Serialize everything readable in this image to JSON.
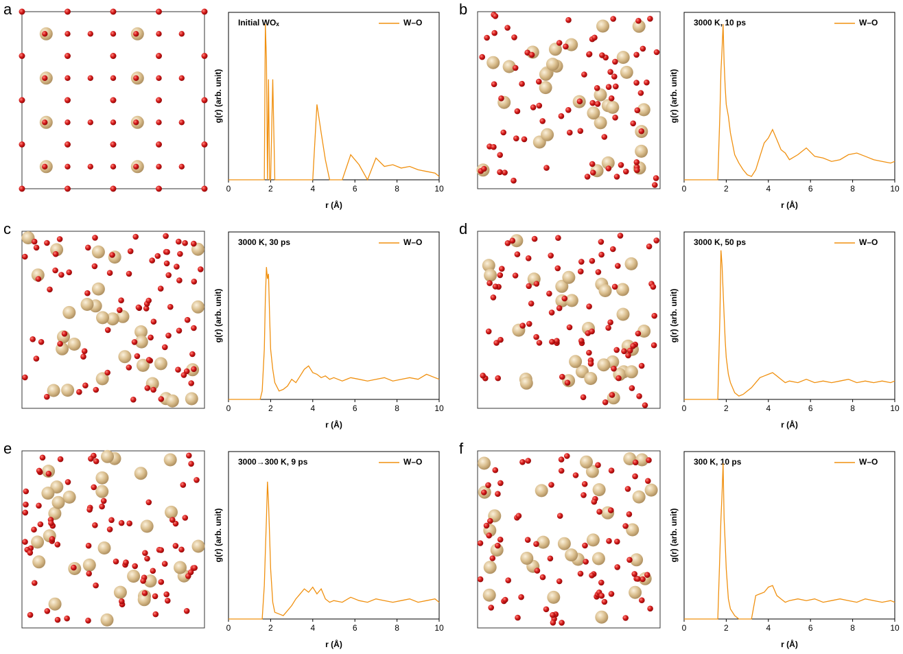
{
  "chart_data": [
    {
      "type": "line",
      "label": "a",
      "title": "Initial WOₓ",
      "xlabel": "r (Å)",
      "ylabel": "g(r) (arb. unit)",
      "legend": "upper right",
      "x": [
        0,
        1.5,
        1.6,
        1.7,
        1.75,
        1.8,
        1.85,
        1.9,
        1.95,
        2.0,
        2.1,
        2.2,
        2.4,
        2.6,
        2.8,
        3.0,
        3.2,
        3.4,
        3.6,
        3.8,
        4.0,
        4.2,
        4.4,
        4.6,
        4.8,
        5.0,
        5.4,
        5.8,
        6.2,
        6.6,
        7.0,
        7.4,
        7.8,
        8.2,
        8.6,
        9.0,
        9.4,
        9.8,
        10
      ],
      "series": [
        {
          "name": "W–O",
          "color": "#f0900f",
          "values": [
            0,
            0,
            0,
            0,
            9.3,
            7.2,
            0,
            6.0,
            0,
            0,
            6.0,
            0,
            0,
            0,
            0,
            0,
            0,
            0,
            0,
            0,
            0,
            4.5,
            2.8,
            1.2,
            0,
            0,
            0,
            1.5,
            0.9,
            0,
            1.3,
            0.8,
            0.9,
            0.7,
            0.8,
            0.6,
            0.5,
            0.4,
            0.2
          ]
        }
      ],
      "xlim": [
        0,
        10
      ],
      "ylim": [
        0,
        10
      ],
      "xticks": [
        0,
        2,
        4,
        6,
        8,
        10
      ]
    },
    {
      "type": "line",
      "label": "b",
      "title": "3000 K, 10 ps",
      "xlabel": "r (Å)",
      "ylabel": "g(r) (arb. unit)",
      "legend": "upper right",
      "x": [
        0,
        1.5,
        1.6,
        1.7,
        1.75,
        1.8,
        1.85,
        1.9,
        1.95,
        2.0,
        2.1,
        2.2,
        2.4,
        2.6,
        2.8,
        3.0,
        3.2,
        3.4,
        3.6,
        3.8,
        4.0,
        4.2,
        4.4,
        4.6,
        4.8,
        5.0,
        5.4,
        5.8,
        6.2,
        6.6,
        7.0,
        7.4,
        7.8,
        8.2,
        8.6,
        9.0,
        9.4,
        9.8,
        10
      ],
      "series": [
        {
          "name": "W–O",
          "color": "#f0900f",
          "values": [
            0,
            0,
            0,
            4.0,
            6.5,
            7.8,
            9.3,
            7.0,
            5.5,
            4.5,
            3.8,
            2.8,
            1.5,
            1.0,
            0.6,
            0.3,
            0.2,
            0.6,
            1.4,
            2.2,
            2.5,
            3.0,
            2.4,
            1.8,
            1.6,
            1.2,
            1.5,
            1.9,
            1.4,
            1.3,
            1.1,
            1.2,
            1.5,
            1.6,
            1.4,
            1.2,
            1.1,
            1.0,
            1.1
          ]
        }
      ],
      "xlim": [
        0,
        10
      ],
      "ylim": [
        0,
        10
      ],
      "xticks": [
        0,
        2,
        4,
        6,
        8,
        10
      ]
    },
    {
      "type": "line",
      "label": "c",
      "title": "3000 K, 30 ps",
      "xlabel": "r (Å)",
      "ylabel": "g(r) (arb. unit)",
      "legend": "upper right",
      "x": [
        0,
        1.5,
        1.6,
        1.7,
        1.75,
        1.8,
        1.85,
        1.9,
        1.95,
        2.0,
        2.1,
        2.2,
        2.4,
        2.6,
        2.8,
        3.0,
        3.2,
        3.4,
        3.6,
        3.8,
        4.0,
        4.2,
        4.4,
        4.6,
        4.8,
        5.0,
        5.4,
        5.8,
        6.2,
        6.6,
        7.0,
        7.4,
        7.8,
        8.2,
        8.6,
        9.0,
        9.4,
        9.8,
        10
      ],
      "series": [
        {
          "name": "W–O",
          "color": "#f0900f",
          "values": [
            0,
            0,
            0.5,
            3.0,
            6.0,
            7.9,
            7.2,
            7.5,
            5.0,
            3.0,
            1.8,
            1.0,
            0.5,
            0.6,
            0.8,
            1.2,
            1.0,
            1.4,
            1.8,
            2.0,
            1.6,
            1.5,
            1.3,
            1.4,
            1.2,
            1.3,
            1.1,
            1.3,
            1.2,
            1.1,
            1.2,
            1.3,
            1.1,
            1.2,
            1.3,
            1.2,
            1.5,
            1.3,
            1.2
          ]
        }
      ],
      "xlim": [
        0,
        10
      ],
      "ylim": [
        0,
        10
      ],
      "xticks": [
        0,
        2,
        4,
        6,
        8,
        10
      ]
    },
    {
      "type": "line",
      "label": "d",
      "title": "3000 K, 50 ps",
      "xlabel": "r (Å)",
      "ylabel": "g(r) (arb. unit)",
      "legend": "upper right",
      "x": [
        0,
        1.5,
        1.6,
        1.7,
        1.75,
        1.8,
        1.85,
        1.9,
        1.95,
        2.0,
        2.1,
        2.2,
        2.4,
        2.6,
        2.8,
        3.0,
        3.2,
        3.4,
        3.6,
        3.8,
        4.0,
        4.2,
        4.4,
        4.6,
        4.8,
        5.0,
        5.4,
        5.8,
        6.2,
        6.6,
        7.0,
        7.4,
        7.8,
        8.2,
        8.6,
        9.0,
        9.4,
        9.8,
        10
      ],
      "series": [
        {
          "name": "W–O",
          "color": "#f0900f",
          "values": [
            0,
            0,
            0,
            5.0,
            8.9,
            8.0,
            6.5,
            5.0,
            3.5,
            2.5,
            1.5,
            1.0,
            0.4,
            0.2,
            0.3,
            0.5,
            0.7,
            1.0,
            1.3,
            1.4,
            1.5,
            1.6,
            1.4,
            1.2,
            1.0,
            1.1,
            1.0,
            1.2,
            1.0,
            1.1,
            1.0,
            1.1,
            1.2,
            1.0,
            1.1,
            1.0,
            1.1,
            1.0,
            1.1
          ]
        }
      ],
      "xlim": [
        0,
        10
      ],
      "ylim": [
        0,
        10
      ],
      "xticks": [
        0,
        2,
        4,
        6,
        8,
        10
      ]
    },
    {
      "type": "line",
      "label": "e",
      "title": "3000→300 K, 9 ps",
      "xlabel": "r (Å)",
      "ylabel": "g(r) (arb. unit)",
      "legend": "upper right",
      "x": [
        0,
        1.5,
        1.6,
        1.7,
        1.75,
        1.8,
        1.85,
        1.9,
        1.95,
        2.0,
        2.1,
        2.2,
        2.4,
        2.6,
        2.8,
        3.0,
        3.2,
        3.4,
        3.6,
        3.8,
        4.0,
        4.2,
        4.4,
        4.6,
        4.8,
        5.0,
        5.4,
        5.8,
        6.2,
        6.6,
        7.0,
        7.4,
        7.8,
        8.2,
        8.6,
        9.0,
        9.4,
        9.8,
        10
      ],
      "series": [
        {
          "name": "W–O",
          "color": "#f0900f",
          "values": [
            0,
            0,
            0,
            2.0,
            4.0,
            6.0,
            8.2,
            7.0,
            5.0,
            3.0,
            1.0,
            0.4,
            0.3,
            0.2,
            0.5,
            0.8,
            1.2,
            1.5,
            1.8,
            1.6,
            1.9,
            1.5,
            1.8,
            1.2,
            1.0,
            1.1,
            1.0,
            1.3,
            1.1,
            1.0,
            1.2,
            1.1,
            1.0,
            1.1,
            1.2,
            1.0,
            1.1,
            1.2,
            1.0
          ]
        }
      ],
      "xlim": [
        0,
        10
      ],
      "ylim": [
        0,
        10
      ],
      "xticks": [
        0,
        2,
        4,
        6,
        8,
        10
      ]
    },
    {
      "type": "line",
      "label": "f",
      "title": "300 K, 10 ps",
      "xlabel": "r (Å)",
      "ylabel": "g(r) (arb. unit)",
      "legend": "upper right",
      "x": [
        0,
        1.5,
        1.6,
        1.7,
        1.75,
        1.8,
        1.85,
        1.9,
        1.95,
        2.0,
        2.1,
        2.2,
        2.4,
        2.6,
        2.8,
        3.0,
        3.2,
        3.4,
        3.6,
        3.8,
        4.0,
        4.2,
        4.4,
        4.6,
        4.8,
        5.0,
        5.4,
        5.8,
        6.2,
        6.6,
        7.0,
        7.4,
        7.8,
        8.2,
        8.6,
        9.0,
        9.4,
        9.8,
        10
      ],
      "series": [
        {
          "name": "W–O",
          "color": "#f0900f",
          "values": [
            0,
            0,
            0,
            4.0,
            6.0,
            7.5,
            9.3,
            6.0,
            4.5,
            3.0,
            1.2,
            0.6,
            0.2,
            0,
            0,
            0,
            0,
            1.4,
            1.5,
            1.6,
            1.9,
            2.0,
            1.4,
            1.2,
            1.0,
            1.1,
            1.2,
            1.1,
            1.2,
            1.0,
            1.1,
            1.2,
            1.1,
            1.0,
            1.2,
            1.1,
            1.0,
            1.1,
            1.0
          ]
        }
      ],
      "xlim": [
        0,
        10
      ],
      "ylim": [
        0,
        10
      ],
      "xticks": [
        0,
        2,
        4,
        6,
        8,
        10
      ]
    }
  ]
}
